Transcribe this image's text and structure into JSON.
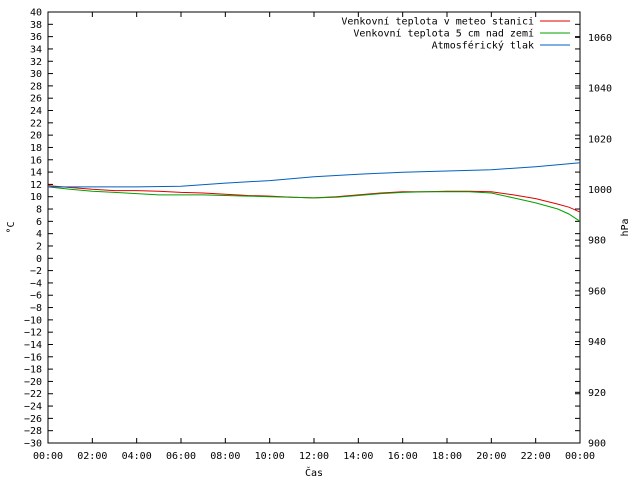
{
  "chart_data": {
    "type": "line",
    "xlabel": "Čas",
    "ylabel_left": "°C",
    "ylabel_right": "hPa",
    "x_ticks": [
      "00:00",
      "02:00",
      "04:00",
      "06:00",
      "08:00",
      "10:00",
      "12:00",
      "14:00",
      "16:00",
      "18:00",
      "20:00",
      "22:00",
      "00:00"
    ],
    "x_range_hours": [
      0,
      24
    ],
    "ylim_left": [
      -30,
      40
    ],
    "ylim_right": [
      900,
      1070
    ],
    "y_ticks_left": [
      40,
      38,
      36,
      34,
      32,
      30,
      28,
      26,
      24,
      22,
      20,
      18,
      16,
      14,
      12,
      10,
      8,
      6,
      4,
      2,
      0,
      -2,
      -4,
      -6,
      -8,
      -10,
      -12,
      -14,
      -16,
      -18,
      -20,
      -22,
      -24,
      -26,
      -28,
      -30
    ],
    "y_ticks_right": [
      1060,
      1040,
      1020,
      1000,
      980,
      960,
      940,
      920,
      900
    ],
    "grid": false,
    "legend_position": "top-right",
    "series": [
      {
        "name": "Venkovní teplota v meteo stanici",
        "color": "#e00000",
        "axis": "left",
        "points": [
          [
            0,
            11.8
          ],
          [
            1,
            11.5
          ],
          [
            2,
            11.2
          ],
          [
            3,
            11.0
          ],
          [
            4,
            11.0
          ],
          [
            5,
            10.9
          ],
          [
            6,
            10.7
          ],
          [
            7,
            10.6
          ],
          [
            8,
            10.4
          ],
          [
            9,
            10.2
          ],
          [
            10,
            10.1
          ],
          [
            11,
            9.9
          ],
          [
            12,
            9.8
          ],
          [
            13,
            10.0
          ],
          [
            14,
            10.3
          ],
          [
            15,
            10.6
          ],
          [
            16,
            10.8
          ],
          [
            17,
            10.8
          ],
          [
            18,
            10.9
          ],
          [
            19,
            10.9
          ],
          [
            20,
            10.8
          ],
          [
            21,
            10.3
          ],
          [
            22,
            9.7
          ],
          [
            23,
            8.8
          ],
          [
            23.5,
            8.3
          ],
          [
            24,
            7.5
          ]
        ]
      },
      {
        "name": "Venkovní teplota 5 cm nad zemí",
        "color": "#00a000",
        "axis": "left",
        "points": [
          [
            0,
            11.6
          ],
          [
            1,
            11.2
          ],
          [
            2,
            10.9
          ],
          [
            3,
            10.7
          ],
          [
            4,
            10.5
          ],
          [
            5,
            10.3
          ],
          [
            6,
            10.3
          ],
          [
            7,
            10.3
          ],
          [
            8,
            10.2
          ],
          [
            9,
            10.1
          ],
          [
            10,
            10.0
          ],
          [
            11,
            9.9
          ],
          [
            12,
            9.8
          ],
          [
            13,
            9.9
          ],
          [
            14,
            10.2
          ],
          [
            15,
            10.5
          ],
          [
            16,
            10.7
          ],
          [
            17,
            10.8
          ],
          [
            18,
            10.8
          ],
          [
            19,
            10.8
          ],
          [
            20,
            10.6
          ],
          [
            21,
            9.8
          ],
          [
            22,
            9.0
          ],
          [
            23,
            8.0
          ],
          [
            23.5,
            7.2
          ],
          [
            24,
            6.0
          ]
        ]
      },
      {
        "name": "Atmosférický tlak",
        "color": "#0060c0",
        "axis": "right",
        "points": [
          [
            0,
            1001
          ],
          [
            2,
            1001
          ],
          [
            4,
            1001
          ],
          [
            6,
            1001.3
          ],
          [
            8,
            1002.5
          ],
          [
            10,
            1003.5
          ],
          [
            12,
            1005
          ],
          [
            14,
            1006
          ],
          [
            16,
            1006.8
          ],
          [
            18,
            1007.3
          ],
          [
            20,
            1007.8
          ],
          [
            22,
            1009
          ],
          [
            24,
            1010.5
          ]
        ]
      }
    ]
  }
}
